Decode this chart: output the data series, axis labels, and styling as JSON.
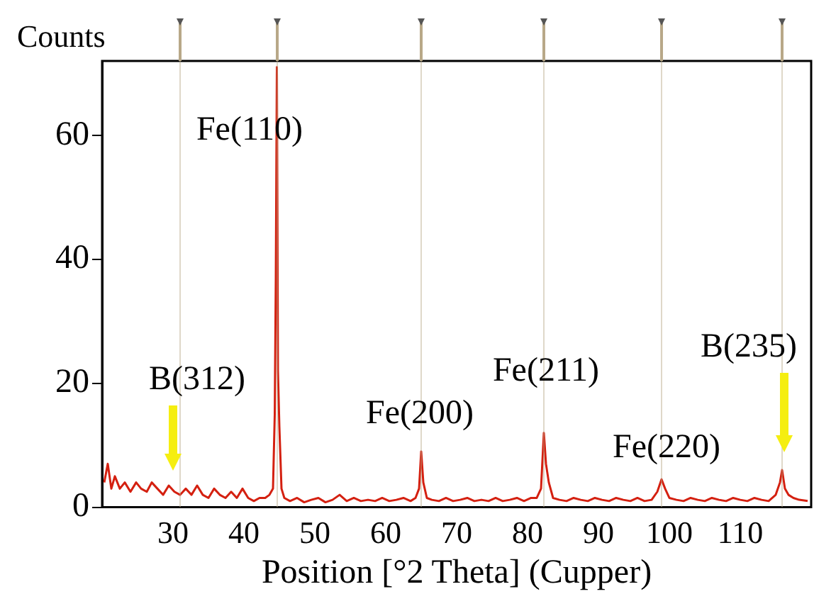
{
  "chart_data": {
    "type": "line",
    "ylabel": "Counts",
    "xlabel": "Position [°2 Theta] (Cupper)",
    "x": [
      20.3,
      20.8,
      21.3,
      21.8,
      22.5,
      23.2,
      24,
      24.8,
      25.5,
      26.3,
      27,
      27.8,
      28.6,
      29.4,
      30.2,
      31,
      31.8,
      32.6,
      33.4,
      34.2,
      35,
      35.8,
      36.6,
      37.4,
      38.2,
      39,
      39.8,
      40.6,
      41.4,
      42.2,
      43,
      43.6,
      44.1,
      44.35,
      44.5,
      44.65,
      44.8,
      45,
      45.3,
      45.7,
      46.5,
      47.5,
      48.5,
      49.5,
      50.5,
      51.5,
      52.5,
      53.5,
      54.5,
      55.5,
      56.5,
      57.5,
      58.5,
      59.5,
      60.5,
      61.5,
      62.5,
      63.5,
      64.2,
      64.7,
      65,
      65.3,
      65.8,
      66.5,
      67.5,
      68.5,
      69.5,
      70.5,
      71.5,
      72.5,
      73.5,
      74.5,
      75.5,
      76.5,
      77.5,
      78.5,
      79.5,
      80.5,
      81.3,
      81.9,
      82.3,
      82.6,
      83,
      83.6,
      84.5,
      85.5,
      86.5,
      87.5,
      88.5,
      89.5,
      90.5,
      91.5,
      92.5,
      93.5,
      94.5,
      95.5,
      96.5,
      97.5,
      98.3,
      98.9,
      99.4,
      100,
      101,
      102,
      103,
      104,
      105,
      106,
      107,
      108,
      109,
      110,
      111,
      112,
      113,
      114,
      115,
      115.6,
      115.9,
      116.3,
      116.8,
      117.5,
      118.3,
      119.5
    ],
    "values": [
      4,
      7,
      3,
      5,
      3,
      4,
      2.5,
      4,
      3,
      2.5,
      4,
      3,
      2,
      3.5,
      2.5,
      2,
      3,
      2,
      3.5,
      2,
      1.5,
      3,
      2,
      1.5,
      2.5,
      1.5,
      3,
      1.5,
      1,
      1.5,
      1.5,
      2,
      3,
      15,
      37,
      71,
      22,
      13,
      3,
      1.5,
      1,
      1.5,
      0.8,
      1.2,
      1.5,
      0.8,
      1.2,
      2,
      1,
      1.5,
      1,
      1.2,
      1,
      1.5,
      1,
      1.2,
      1.5,
      1,
      1.5,
      3,
      9,
      4,
      1.5,
      1.2,
      1,
      1.5,
      1,
      1.2,
      1.5,
      1,
      1.2,
      1,
      1.5,
      1,
      1.2,
      1.5,
      1,
      1.5,
      1.5,
      3,
      12,
      7,
      4,
      1.5,
      1.2,
      1,
      1.5,
      1.2,
      1,
      1.5,
      1.2,
      1,
      1.5,
      1.2,
      1,
      1.5,
      1,
      1.2,
      2.5,
      4.5,
      3,
      1.5,
      1.2,
      1,
      1.5,
      1.2,
      1,
      1.5,
      1.2,
      1,
      1.5,
      1.2,
      1,
      1.5,
      1.2,
      1,
      2,
      4,
      6,
      3,
      2,
      1.5,
      1.2,
      1
    ],
    "color": "#d42010",
    "xlim": [
      20,
      120
    ],
    "xticks": [
      30,
      40,
      50,
      60,
      70,
      80,
      90,
      100,
      110
    ],
    "ylim": [
      0,
      72
    ],
    "yticks": [
      0,
      20,
      40,
      60
    ],
    "grid": false,
    "legend": false,
    "marker": "none",
    "line_style": "solid",
    "ref_lines": [
      {
        "axis": "x",
        "value": 31,
        "label": null,
        "color": "#b8a888"
      },
      {
        "axis": "x",
        "value": 44.7,
        "label": null,
        "color": "#b8a888"
      },
      {
        "axis": "x",
        "value": 65,
        "label": null,
        "color": "#b8a888"
      },
      {
        "axis": "x",
        "value": 82.3,
        "label": null,
        "color": "#b8a888"
      },
      {
        "axis": "x",
        "value": 98.9,
        "label": null,
        "color": "#b8a888"
      },
      {
        "axis": "x",
        "value": 115.9,
        "label": null,
        "color": "#b8a888"
      }
    ],
    "annotations": [
      "B(312)",
      "Fe(110)",
      "Fe(200)",
      "Fe(211)",
      "Fe(220)",
      "B(235)"
    ]
  }
}
